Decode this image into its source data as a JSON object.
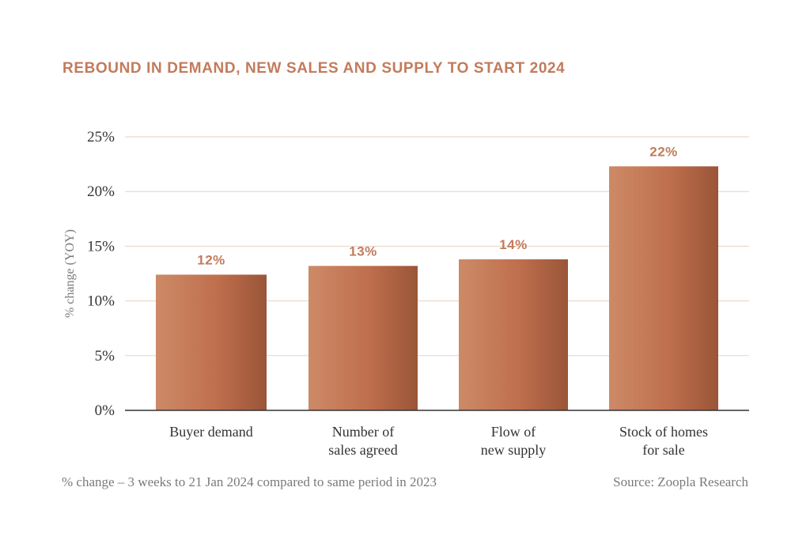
{
  "colors": {
    "title": "#c27b5c",
    "bar_light": "#cd8a67",
    "bar_mid": "#bf6f4d",
    "bar_dark": "#9a5538",
    "grid": "#e6d3c6",
    "axis": "#333333",
    "data_label": "#c27b5c",
    "text": "#333333",
    "note": "#7a7a7a"
  },
  "footnote": "% change – 3 weeks to 21 Jan 2024 compared to same period in 2023",
  "source": "Source: Zoopla Research",
  "chart_data": {
    "type": "bar",
    "title": "REBOUND IN DEMAND, NEW SALES AND SUPPLY TO START 2024",
    "xlabel": "",
    "ylabel": "% change (YOY)",
    "ylim": [
      0,
      25
    ],
    "yticks": [
      0,
      5,
      10,
      15,
      20,
      25
    ],
    "ytick_labels": [
      "0%",
      "5%",
      "10%",
      "15%",
      "20%",
      "25%"
    ],
    "categories": [
      [
        "Buyer demand"
      ],
      [
        "Number of",
        "sales agreed"
      ],
      [
        "Flow of",
        "new supply"
      ],
      [
        "Stock of homes",
        "for sale"
      ]
    ],
    "values": [
      12.4,
      13.2,
      13.8,
      22.3
    ],
    "data_labels": [
      "12%",
      "13%",
      "14%",
      "22%"
    ],
    "grid": true,
    "legend": "none"
  }
}
